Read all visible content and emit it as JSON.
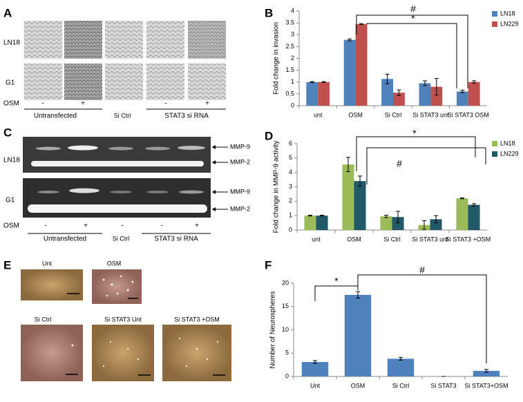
{
  "panel_a": {
    "letter": "A",
    "rows": [
      "LN18",
      "G1"
    ],
    "treatment": "OSM",
    "signs": [
      "-",
      "+",
      "-",
      "+"
    ],
    "groups": [
      "Untransfected",
      "Si Ctrl",
      "STAT3 si RNA"
    ]
  },
  "panel_c": {
    "letter": "C",
    "rows": [
      "LN18",
      "G1"
    ],
    "bands": [
      "MMP-9",
      "MMP-2"
    ],
    "treatment": "OSM",
    "signs": [
      "-",
      "+",
      "-",
      "-",
      "+"
    ],
    "groups": [
      "Untransfected",
      "Si Ctrl",
      "STAT3 si RNA"
    ]
  },
  "panel_e": {
    "letter": "E",
    "images": [
      "Unt",
      "OSM",
      "Si Ctrl",
      "Si STAT3 Unt",
      "Si STAT3 +OSM"
    ]
  },
  "chart_data": [
    {
      "type": "bar",
      "letter": "B",
      "y_label": "Fold change in invasion",
      "categories": [
        "unt",
        "OSM",
        "Si Ctrl",
        "Si STAT3 unt",
        "Si STAT3 OSM"
      ],
      "series": [
        {
          "name": "LN18",
          "color": "#4f81bd",
          "values": [
            1,
            2.78,
            1.13,
            0.95,
            0.6
          ],
          "errors": [
            0.02,
            0.04,
            0.2,
            0.1,
            0.05
          ]
        },
        {
          "name": "LN229",
          "color": "#c0504d",
          "values": [
            1,
            3.45,
            0.55,
            0.8,
            1.0
          ],
          "errors": [
            0.02,
            0.02,
            0.12,
            0.35,
            0.05
          ]
        }
      ],
      "ylim": [
        0,
        4
      ],
      "yticks": [
        0,
        0.5,
        1,
        1.5,
        2,
        2.5,
        3,
        3.5,
        4
      ],
      "legend": "right",
      "annotations": [
        "#",
        "*"
      ]
    },
    {
      "type": "bar",
      "letter": "D",
      "y_label": "Fold change in MMP-9 activity",
      "categories": [
        "unt",
        "OSM",
        "Si Ctrl",
        "Si STAT3 unt",
        "Si STAT3 +OSM"
      ],
      "series": [
        {
          "name": "LN18",
          "color": "#9bbb59",
          "values": [
            1,
            4.55,
            0.95,
            0.35,
            2.2
          ],
          "errors": [
            0.03,
            0.5,
            0.08,
            0.3,
            0.03
          ]
        },
        {
          "name": "LN229",
          "color": "#215968",
          "values": [
            1,
            3.4,
            0.9,
            0.75,
            1.75
          ],
          "errors": [
            0.03,
            0.35,
            0.4,
            0.25,
            0.08
          ]
        }
      ],
      "ylim": [
        0,
        6
      ],
      "yticks": [
        0,
        1,
        2,
        3,
        4,
        5,
        6
      ],
      "legend": "right",
      "annotations": [
        "*",
        "#"
      ]
    },
    {
      "type": "bar",
      "letter": "F",
      "y_label": "Number of Neurospheres",
      "categories": [
        "Unt",
        "OSM",
        "Si Ctrl",
        "Si STAT3",
        "Si STAT3+OSM"
      ],
      "color": "#4f81bd",
      "values": [
        3.1,
        17.5,
        3.8,
        0,
        1.2
      ],
      "errors": [
        0.3,
        0.7,
        0.3,
        0,
        0.3
      ],
      "ylim": [
        0,
        20
      ],
      "yticks": [
        0,
        5,
        10,
        15,
        20
      ],
      "annotations": [
        "*",
        "#"
      ]
    }
  ]
}
